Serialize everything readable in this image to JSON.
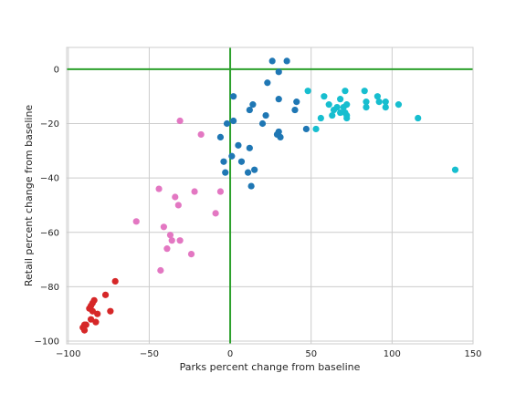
{
  "chart_data": {
    "type": "scatter",
    "title": "",
    "xlabel": "Parks percent change from baseline",
    "ylabel": "Retail percent change from baseline",
    "xlim": [
      -101,
      150
    ],
    "ylim": [
      -101,
      8
    ],
    "xticks": [
      -100,
      -50,
      0,
      50,
      100,
      150
    ],
    "yticks": [
      0,
      -20,
      -40,
      -60,
      -80,
      -100
    ],
    "xtick_labels": [
      "−100",
      "−50",
      "0",
      "50",
      "100",
      "150"
    ],
    "ytick_labels": [
      "0",
      "−20",
      "−40",
      "−60",
      "−80",
      "−100"
    ],
    "grid": true,
    "reference_lines": {
      "x": 0,
      "y": 0,
      "color": "#2ca02c"
    },
    "series": [
      {
        "color": "#1f77b4",
        "points": [
          [
            26,
            3
          ],
          [
            35,
            3
          ],
          [
            30,
            -1
          ],
          [
            23,
            -5
          ],
          [
            2,
            -10
          ],
          [
            30,
            -11
          ],
          [
            41,
            -12
          ],
          [
            14,
            -13
          ],
          [
            12,
            -15
          ],
          [
            40,
            -15
          ],
          [
            22,
            -17
          ],
          [
            -2,
            -20
          ],
          [
            2,
            -19
          ],
          [
            20,
            -20
          ],
          [
            47,
            -22
          ],
          [
            30,
            -23
          ],
          [
            29,
            -24
          ],
          [
            31,
            -25
          ],
          [
            -6,
            -25
          ],
          [
            5,
            -28
          ],
          [
            12,
            -29
          ],
          [
            1,
            -32
          ],
          [
            -4,
            -34
          ],
          [
            7,
            -34
          ],
          [
            -3,
            -38
          ],
          [
            15,
            -37
          ],
          [
            11,
            -38
          ],
          [
            13,
            -43
          ]
        ]
      },
      {
        "color": "#17becf",
        "points": [
          [
            48,
            -8
          ],
          [
            58,
            -10
          ],
          [
            68,
            -11
          ],
          [
            71,
            -8
          ],
          [
            83,
            -8
          ],
          [
            91,
            -10
          ],
          [
            61,
            -13
          ],
          [
            84,
            -12
          ],
          [
            92,
            -12
          ],
          [
            96,
            -12
          ],
          [
            72,
            -13
          ],
          [
            104,
            -13
          ],
          [
            66,
            -14
          ],
          [
            70,
            -14
          ],
          [
            84,
            -14
          ],
          [
            96,
            -14
          ],
          [
            64,
            -15
          ],
          [
            68,
            -16
          ],
          [
            71,
            -16
          ],
          [
            63,
            -17
          ],
          [
            72,
            -17
          ],
          [
            56,
            -18
          ],
          [
            72,
            -18
          ],
          [
            116,
            -18
          ],
          [
            53,
            -22
          ],
          [
            139,
            -37
          ]
        ]
      },
      {
        "color": "#e377c2",
        "points": [
          [
            -31,
            -19
          ],
          [
            -18,
            -24
          ],
          [
            -44,
            -44
          ],
          [
            -22,
            -45
          ],
          [
            -6,
            -45
          ],
          [
            -34,
            -47
          ],
          [
            -32,
            -50
          ],
          [
            -9,
            -53
          ],
          [
            -58,
            -56
          ],
          [
            -41,
            -58
          ],
          [
            -37,
            -61
          ],
          [
            -36,
            -63
          ],
          [
            -31,
            -63
          ],
          [
            -39,
            -66
          ],
          [
            -24,
            -68
          ],
          [
            -43,
            -74
          ]
        ]
      },
      {
        "color": "#d62728",
        "points": [
          [
            -71,
            -78
          ],
          [
            -77,
            -83
          ],
          [
            -84,
            -85
          ],
          [
            -85,
            -86
          ],
          [
            -86,
            -87
          ],
          [
            -87,
            -88
          ],
          [
            -74,
            -89
          ],
          [
            -85,
            -89
          ],
          [
            -82,
            -90
          ],
          [
            -86,
            -92
          ],
          [
            -83,
            -93
          ],
          [
            -89,
            -94
          ],
          [
            -90,
            -94
          ],
          [
            -91,
            -95
          ],
          [
            -90,
            -96
          ]
        ]
      }
    ]
  }
}
